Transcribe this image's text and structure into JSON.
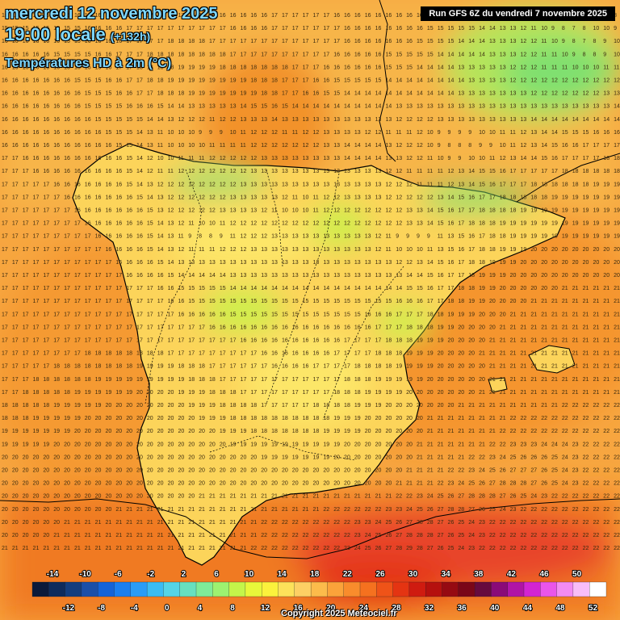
{
  "header": {
    "date": "mercredi 12 novembre 2025",
    "time": "19:00 locale",
    "offset": "(+132h)",
    "parameter": "Températures HD à 2m (°C)"
  },
  "run_info": "Run GFS 6Z du vendredi 7 novembre 2025",
  "copyright": "Copyright 2025 Meteociel.fr",
  "legend": {
    "upper_labels": [
      "-14",
      "-10",
      "-6",
      "-2",
      "2",
      "6",
      "10",
      "14",
      "18",
      "22",
      "26",
      "30",
      "34",
      "38",
      "42",
      "46",
      "50"
    ],
    "lower_labels": [
      "-12",
      "-8",
      "-4",
      "0",
      "4",
      "8",
      "12",
      "16",
      "20",
      "24",
      "28",
      "32",
      "36",
      "40",
      "44",
      "48",
      "52"
    ],
    "colors": [
      "#0b1a3a",
      "#0e2b5c",
      "#133d7e",
      "#1b4fa8",
      "#1463d8",
      "#1a7ff0",
      "#2a9cf5",
      "#3bbcf3",
      "#55d4e6",
      "#67e0bf",
      "#7feb98",
      "#9df270",
      "#c4f54a",
      "#e8f73a",
      "#fbf23c",
      "#fde25a",
      "#fdd064",
      "#fcbb4b",
      "#fba33a",
      "#f98c2c",
      "#f5711f",
      "#ef5318",
      "#e43412",
      "#cf1b10",
      "#b5100e",
      "#960a12",
      "#7a0618",
      "#660a3e",
      "#8a0a78",
      "#b014a6",
      "#d324d2",
      "#ea55ea",
      "#f38bf3",
      "#f8bdf8",
      "#ffffff"
    ]
  },
  "map": {
    "colors": {
      "sea_warm": "#f7a640",
      "sea_hot": "#f08a2c",
      "land_mild": "#fcd154",
      "land_cool": "#fde86a",
      "mountain_cold": "#9ee070",
      "coast_line": "#000000",
      "africa_hot": "#e83a2a"
    },
    "grid_rows": [
      "15 15 15 15 15 15 15 16 16 16 16 16 17 17 17 17 17 17 17 17 16 16 16 16 16 16 17 17 17 17 17 17 16 16 16 16 16 16 16 16 16 15 15 15 15 15 14 14 13 13 12 11 10 9 8 8 10 11 10 8",
      "15 15 15 15 15 15 15 15 16 16 16 16 17 17 17 17 17 17 17 17 17 17 16 16 16 16 17 17 17 17 17 17 17 16 16 16 16 16 16 16 16 15 15 15 15 15 14 14 13 13 12 11 10 9 8 7 8 10 10 9",
      "16 16 16 16 16 16 15 15 16 16 16 16 17 17 17 17 18 18 18 18 17 17 17 17 17 17 17 17 17 17 17 17 17 16 16 16 16 16 16 16 15 15 15 15 14 14 14 13 13 13 12 12 11 10 9 8 7 8 9 10",
      "16 16 16 16 16 15 15 15 15 16 16 17 17 17 18 18 18 18 18 18 18 18 17 17 17 17 17 17 17 17 17 17 16 16 16 16 16 15 15 15 15 15 14 14 14 14 14 13 13 13 12 12 11 11 10 9 8 8 9 10",
      "16 16 16 16 16 16 15 15 15 15 16 17 17 18 18 18 18 19 19 19 19 18 18 18 18 18 18 18 17 17 17 16 16 16 16 16 16 15 15 15 14 14 14 14 13 13 13 13 13 12 12 12 11 11 11 10 10 10 11 11",
      "16 16 16 16 16 16 16 15 15 15 16 16 17 17 18 18 19 19 19 19 19 19 19 19 18 18 18 17 17 17 16 16 15 15 15 15 15 14 14 14 14 14 14 14 14 13 13 13 13 12 12 12 12 12 12 12 12 12 12 12",
      "16 16 16 16 16 16 16 16 15 15 15 16 16 17 17 18 18 18 19 19 19 19 19 19 19 18 18 17 17 16 16 15 15 14 14 14 14 14 14 14 14 14 14 14 13 13 13 13 13 13 13 12 12 12 12 12 12 12 13 13",
      "16 16 16 16 16 16 16 16 15 15 15 15 16 16 16 15 14 14 13 13 13 13 13 14 15 15 16 15 14 14 14 14 14 14 14 14 14 14 13 13 13 13 13 13 13 13 13 13 13 13 13 13 13 13 13 13 13 13 13 14",
      "16 16 16 16 16 16 16 16 16 15 15 15 15 15 14 14 13 12 12 12 11 12 12 13 13 13 14 13 13 13 13 13 13 13 13 13 13 13 12 12 12 12 13 13 13 13 13 13 13 13 13 14 14 14 14 14 14 14 14 14",
      "16 16 16 16 16 16 16 16 16 16 15 15 15 14 13 11 10 10 10 9 9 9 10 11 12 12 12 11 11 12 12 13 13 13 13 12 12 11 11 11 12 10 9 9 9 9 10 10 11 11 12 13 14 14 15 15 15 16 16 16",
      "16 16 16 16 16 16 16 16 16 16 16 15 15 14 13 11 10 10 10 10 11 11 11 11 12 12 12 12 12 12 12 13 13 14 14 14 14 13 12 12 12 10 9 8 8 8 9 9 10 11 12 13 14 15 16 16 17 17 17 17",
      "17 17 16 16 16 16 16 16 16 16 16 16 15 14 12 10 10 11 11 11 12 12 12 12 12 13 13 13 13 13 13 13 13 14 14 14 14 13 13 12 12 11 10 9 9 10 10 11 12 13 14 14 15 16 17 17 17 17 18 18",
      "17 17 17 16 16 16 16 16 16 16 16 16 15 14 12 11 11 12 12 12 12 12 12 12 13 13 13 13 13 13 13 13 13 13 13 13 13 12 12 11 11 11 11 12 13 14 15 15 16 17 17 17 17 17 18 18 18 18 18 18",
      "17 17 17 17 17 16 16 16 16 16 16 16 15 14 13 12 12 12 12 12 12 12 12 13 13 13 13 13 13 13 13 13 13 13 13 13 13 12 12 12 11 11 11 12 13 14 15 16 17 17 17 18 18 18 18 18 18 19 19 19",
      "17 17 17 17 17 17 16 16 16 16 16 16 16 15 14 13 12 12 12 12 12 12 13 13 13 13 13 12 11 10 11 12 12 13 13 13 13 12 12 12 12 12 13 14 15 16 17 17 18 18 18 18 18 19 19 19 19 19 19 19",
      "17 17 17 17 17 17 17 16 16 16 16 16 16 16 15 13 12 12 12 12 12 13 13 13 13 12 11 10 10 10 11 12 12 12 12 12 12 12 12 13 13 14 15 16 17 17 18 18 18 18 19 19 19 19 19 19 19 19 19 19",
      "17 17 17 17 17 17 17 17 16 16 16 16 16 16 15 14 13 12 11 10 10 11 12 12 12 12 12 12 12 12 12 12 12 12 12 12 12 12 12 13 13 14 15 16 17 18 18 18 19 19 19 19 19 19 19 19 19 19 19 19",
      "17 17 17 17 17 17 17 17 17 16 16 16 16 16 15 14 13 11 9 8 8 9 11 12 12 12 13 13 13 13 13 13 13 13 13 13 12 11 9 9 9 9 11 13 15 16 17 18 18 19 19 19 19 19 19 19 19 19 19 19",
      "17 17 17 17 17 17 17 17 17 17 16 16 16 16 15 14 13 12 11 11 11 12 12 12 13 13 13 13 13 13 13 13 13 13 13 13 12 11 10 10 10 11 13 15 16 17 18 18 19 19 19 20 20 20 20 20 20 20 20 20",
      "17 17 17 17 17 17 17 17 17 17 17 16 16 16 16 15 14 13 13 13 13 13 13 13 13 13 13 13 13 13 13 13 13 13 13 13 13 13 12 12 13 14 15 16 17 18 18 19 19 19 20 20 20 20 20 20 20 20 20 20",
      "17 17 17 17 17 17 17 17 17 17 17 17 16 16 16 16 15 14 14 14 14 14 13 13 13 13 13 13 13 13 13 13 13 13 13 13 13 13 13 14 14 15 16 17 17 18 19 19 19 20 20 20 20 20 20 20 20 20 20 20",
      "17 17 17 17 17 17 17 17 17 17 17 17 17 17 17 16 16 15 15 15 15 15 14 14 14 14 14 14 14 14 14 14 14 14 14 14 14 14 14 15 15 16 17 17 18 18 19 19 20 20 20 20 20 20 21 21 21 21 21 21",
      "17 17 17 17 17 17 17 17 17 17 17 17 17 17 17 17 16 16 15 15 15 15 15 15 15 15 15 15 15 15 15 15 15 15 15 15 15 15 16 16 16 17 17 18 18 19 19 20 20 20 20 21 21 21 21 21 21 21 21 21",
      "17 17 17 17 17 17 17 17 17 17 17 17 17 17 17 17 17 16 16 16 16 16 15 15 15 15 15 15 15 15 15 15 15 15 15 16 16 16 17 17 17 18 18 19 19 19 20 20 20 21 21 21 21 21 21 21 21 21 21 21",
      "17 17 17 17 17 17 17 17 17 17 17 17 17 17 17 17 17 17 17 17 16 16 16 16 16 16 16 16 16 16 16 16 16 16 16 16 17 17 17 18 18 18 19 19 20 20 20 20 21 21 21 21 21 21 21 21 21 21 21 21",
      "17 17 17 17 17 17 17 17 17 17 17 17 17 17 17 17 17 17 17 17 17 17 17 16 16 16 16 16 16 16 16 16 16 17 17 17 17 18 18 18 19 19 19 20 20 20 20 21 21 21 21 21 21 21 21 21 21 21 21 21",
      "17 17 17 17 17 17 17 17 18 18 18 18 18 18 18 18 17 17 17 17 17 17 17 17 17 16 16 16 16 16 16 16 17 17 17 17 18 18 18 19 19 19 20 20 20 20 21 21 21 21 21 21 21 21 21 21 21 21 21 21",
      "17 17 17 17 17 18 18 18 18 18 18 18 18 19 19 19 19 18 18 18 17 17 17 17 17 17 16 16 16 16 17 17 17 17 18 18 18 18 19 19 19 19 20 20 20 20 20 21 21 21 21 21 21 21 21 21 21 21 21 21",
      "17 17 17 18 18 18 18 18 18 19 19 19 19 19 19 19 19 19 18 18 18 17 17 17 17 17 17 17 17 17 17 17 17 18 18 18 19 19 19 19 19 20 20 20 20 20 20 21 21 21 21 21 21 21 21 21 21 21 21 21",
      "17 17 18 18 18 18 18 19 19 19 19 19 19 20 20 20 20 19 19 19 18 18 18 17 17 17 17 17 17 17 17 17 18 18 18 19 19 19 19 20 20 20 20 20 20 20 21 21 21 21 21 21 21 21 21 21 21 21 21 21",
      "18 18 18 18 18 19 19 19 19 19 20 20 20 20 20 20 20 20 19 19 19 18 18 18 18 17 17 17 17 17 18 18 18 18 19 19 19 20 20 20 20 20 20 20 21 21 21 21 21 21 21 21 21 21 22 22 22 22 22 22",
      "18 18 18 19 19 19 19 19 20 20 20 20 20 20 20 20 20 20 20 19 19 19 18 18 18 18 18 18 18 18 18 18 19 19 19 20 20 20 20 20 20 21 21 21 21 21 21 21 21 22 22 22 22 22 22 22 22 22 22 22",
      "19 19 19 19 19 19 19 20 20 20 20 20 20 20 20 20 20 20 20 20 20 19 19 19 18 18 18 18 18 18 18 19 19 19 19 20 20 20 20 20 20 21 21 21 21 21 21 21 22 22 22 22 22 22 22 22 22 22 22 22",
      "19 19 19 19 19 20 20 20 20 20 20 20 20 20 20 20 20 20 20 20 20 20 19 19 19 19 19 19 19 19 19 19 19 20 20 20 20 20 20 20 21 21 21 21 21 21 21 22 22 23 23 23 24 24 24 23 22 22 22 22",
      "20 20 20 20 20 20 20 20 20 20 20 20 20 20 20 20 20 20 20 20 20 20 20 20 20 19 19 19 19 19 19 19 20 20 20 20 20 20 20 20 21 21 21 21 21 22 22 23 24 25 26 26 26 25 24 23 22 22 22 22",
      "20 20 20 20 20 20 20 20 20 20 20 20 20 20 20 20 20 20 20 20 20 20 20 20 20 20 20 20 20 20 20 20 20 20 20 20 20 20 20 21 21 21 21 22 22 23 24 25 26 27 27 27 26 25 24 23 22 22 22 22",
      "20 20 20 20 20 20 20 20 20 20 20 20 20 20 20 20 20 20 20 20 20 20 20 20 20 20 20 20 20 20 20 20 20 20 20 20 20 20 21 21 21 21 22 23 24 25 26 27 28 28 28 27 26 25 24 23 22 22 22 22",
      "20 20 20 20 20 20 20 20 20 20 20 20 20 20 20 20 20 20 20 21 21 21 21 21 21 21 21 21 21 21 21 21 21 21 21 21 21 21 22 22 23 24 25 26 27 28 28 28 27 26 25 24 23 22 22 22 22 22 22 22",
      "20 20 20 20 20 20 20 20 20 20 20 21 21 21 21 21 21 21 21 21 21 21 21 21 21 21 21 21 21 21 21 22 22 22 22 22 22 23 23 24 25 26 27 28 28 27 26 25 24 23 22 22 22 22 22 22 22 22 22 22",
      "20 20 20 20 20 20 21 21 21 21 21 21 21 21 21 21 21 21 21 21 21 21 21 21 21 22 22 22 22 22 22 22 22 22 23 23 24 25 26 27 28 28 27 26 25 24 23 22 22 22 22 22 22 22 22 22 22 22 22 22",
      "20 20 20 20 20 21 21 21 21 21 21 21 21 21 21 21 21 21 21 21 21 21 21 21 21 22 22 22 22 22 22 22 22 22 23 24 25 26 27 28 28 28 27 26 25 24 23 22 22 22 22 22 22 22 22 22 22 22 22 22",
      "21 21 21 21 21 21 21 21 21 21 21 21 21 21 21 21 21 21 21 21 21 21 21 21 22 22 22 22 22 22 22 22 22 23 24 25 26 27 28 29 28 27 26 25 24 23 22 22 22 22 22 22 22 22 22 22 22 22 22 22"
    ]
  }
}
